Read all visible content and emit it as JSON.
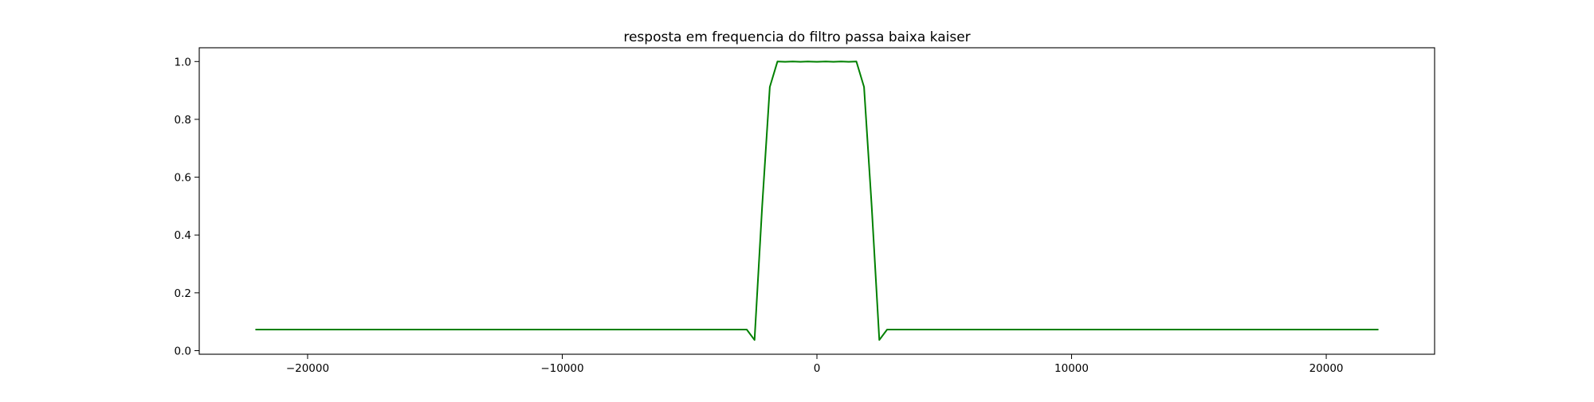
{
  "chart_data": {
    "type": "line",
    "title": "resposta em frequencia do filtro passa baixa kaiser",
    "xlabel": "",
    "ylabel": "",
    "xlim": [
      -24255,
      24255
    ],
    "ylim": [
      -0.0124,
      1.0476
    ],
    "x_ticks": [
      -20000,
      -10000,
      0,
      10000,
      20000
    ],
    "x_tick_labels": [
      "−20000",
      "−10000",
      "0",
      "10000",
      "20000"
    ],
    "y_ticks": [
      0.0,
      0.2,
      0.4,
      0.6,
      0.8,
      1.0
    ],
    "y_tick_labels": [
      "0.0",
      "0.2",
      "0.4",
      "0.6",
      "0.8",
      "1.0"
    ],
    "grid": false,
    "legend": "none",
    "series": [
      {
        "color": "#008000",
        "x": [
          -22050,
          -2756,
          -2450,
          -2150,
          -1850,
          -1550,
          -1250,
          -950,
          -650,
          -350,
          0,
          350,
          650,
          950,
          1250,
          1550,
          1850,
          2150,
          2450,
          2756,
          22050
        ],
        "y": [
          0.073,
          0.073,
          0.037,
          0.5,
          0.912,
          1.0,
          0.999,
          1.0,
          0.999,
          1.0,
          0.999,
          1.0,
          0.999,
          1.0,
          0.999,
          1.0,
          0.912,
          0.5,
          0.037,
          0.073,
          0.073
        ]
      }
    ]
  }
}
